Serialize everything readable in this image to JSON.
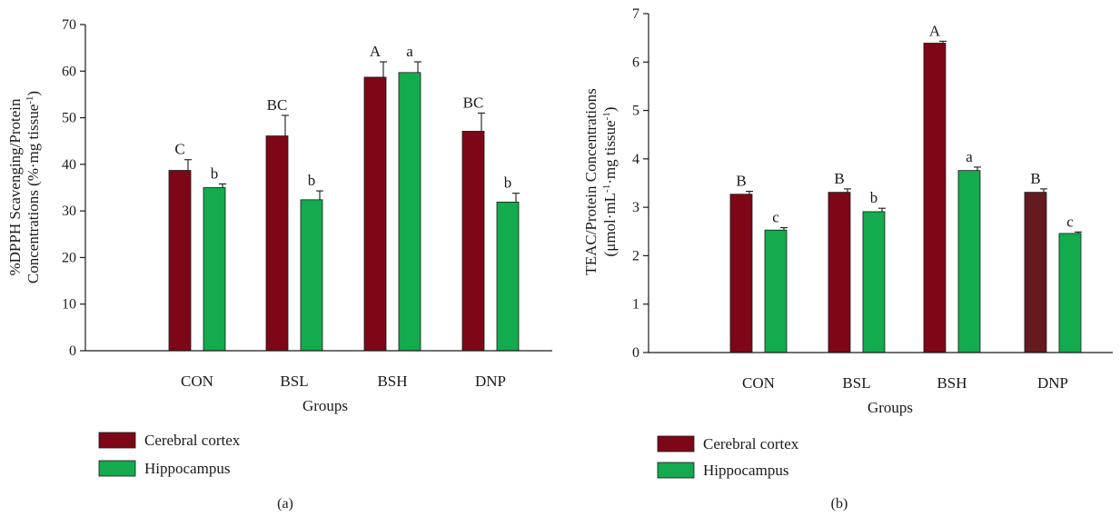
{
  "colors": {
    "cerebral": "#7d0717",
    "hippocampus": "#13ab4d",
    "cerebral_dnp_b": "#641a1e"
  },
  "chart_data": [
    {
      "type": "bar",
      "panel": "(a)",
      "categories": [
        "CON",
        "BSL",
        "BSH",
        "DNP"
      ],
      "xlabel": "Groups",
      "ylabel_line1": "%DPPH Scavenging/Protein",
      "ylabel_line2_main": "Concentrations (%·mg tissue",
      "ylabel_line2_sup": "-1",
      "ylabel_line2_end": ")",
      "ylim": [
        0,
        70
      ],
      "yticks": [
        0,
        10,
        20,
        30,
        40,
        50,
        60,
        70
      ],
      "series": [
        {
          "name": "Cerebral cortex",
          "values": [
            38.7,
            46.1,
            58.7,
            47.1
          ],
          "errors": [
            2.3,
            4.4,
            3.3,
            3.9
          ],
          "labels": [
            "C",
            "BC",
            "A",
            "BC"
          ]
        },
        {
          "name": "Hippocampus",
          "values": [
            35.0,
            32.4,
            59.7,
            31.9
          ],
          "errors": [
            0.8,
            1.9,
            2.3,
            1.9
          ],
          "labels": [
            "b",
            "b",
            "a",
            "b"
          ]
        }
      ]
    },
    {
      "type": "bar",
      "panel": "(b)",
      "categories": [
        "CON",
        "BSL",
        "BSH",
        "DNP"
      ],
      "xlabel": "Groups",
      "ylabel_line1": "TEAC/Protein Concentrations",
      "ylabel_line2_main": "(μmol·mL",
      "ylabel_line2_sup1": "-1",
      "ylabel_line2_mid": "·mg tissue",
      "ylabel_line2_sup2": "-1",
      "ylabel_line2_end": ")",
      "ylim": [
        0,
        7
      ],
      "yticks": [
        0,
        1,
        2,
        3,
        4,
        5,
        6,
        7
      ],
      "series": [
        {
          "name": "Cerebral cortex",
          "values": [
            3.27,
            3.31,
            6.39,
            3.31
          ],
          "errors": [
            0.06,
            0.07,
            0.04,
            0.07
          ],
          "labels": [
            "B",
            "B",
            "A",
            "B"
          ]
        },
        {
          "name": "Hippocampus",
          "values": [
            2.53,
            2.91,
            3.76,
            2.46
          ],
          "errors": [
            0.05,
            0.07,
            0.07,
            0.03
          ],
          "labels": [
            "c",
            "b",
            "a",
            "c"
          ]
        }
      ]
    }
  ]
}
